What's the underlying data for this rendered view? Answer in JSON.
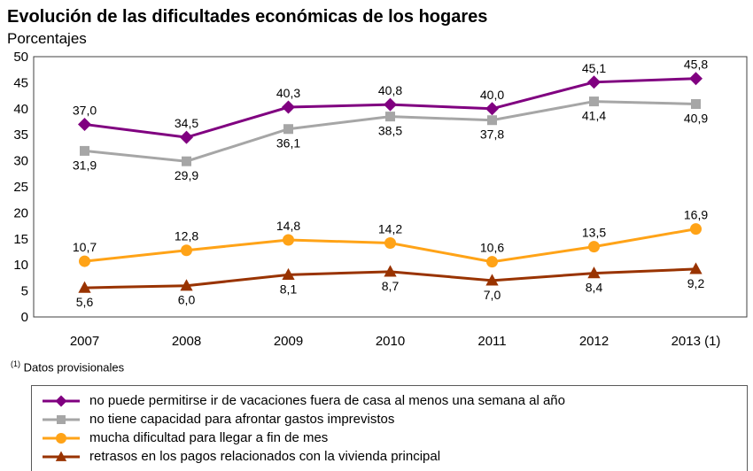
{
  "header": {
    "title": "Evolución de las dificultades económicas de los hogares",
    "subtitle": "Porcentajes"
  },
  "footnote": {
    "marker": "(1)",
    "text": "Datos provisionales"
  },
  "chart_data": {
    "type": "line",
    "title": "Evolución de las dificultades económicas de los hogares",
    "subtitle": "Porcentajes",
    "categories": [
      "2007",
      "2008",
      "2009",
      "2010",
      "2011",
      "2012",
      "2013 (1)"
    ],
    "ylim": [
      0,
      50
    ],
    "ytick_step": 5,
    "grid": false,
    "legend_position": "bottom",
    "decimal_separator": ",",
    "axis_color": "#404040",
    "series": [
      {
        "name": "no puede permitirse ir de vacaciones fuera de casa al menos una semana al año",
        "marker": "diamond",
        "color": "#800080",
        "values": [
          37.0,
          34.5,
          40.3,
          40.8,
          40.0,
          45.1,
          45.8
        ],
        "labels": [
          "37,0",
          "34,5",
          "40,3",
          "40,8",
          "40,0",
          "45,1",
          "45,8"
        ],
        "label_position": "above"
      },
      {
        "name": "no tiene capacidad para afrontar gastos imprevistos",
        "marker": "square",
        "color": "#A6A6A6",
        "values": [
          31.9,
          29.9,
          36.1,
          38.5,
          37.8,
          41.4,
          40.9
        ],
        "labels": [
          "31,9",
          "29,9",
          "36,1",
          "38,5",
          "37,8",
          "41,4",
          "40,9"
        ],
        "label_position": "below"
      },
      {
        "name": "mucha dificultad para llegar a fin de mes",
        "marker": "circle",
        "color": "#FFA317",
        "values": [
          10.7,
          12.8,
          14.8,
          14.2,
          10.6,
          13.5,
          16.9
        ],
        "labels": [
          "10,7",
          "12,8",
          "14,8",
          "14,2",
          "10,6",
          "13,5",
          "16,9"
        ],
        "label_position": "above"
      },
      {
        "name": "retrasos en los pagos relacionados con la vivienda principal",
        "marker": "triangle",
        "color": "#993300",
        "values": [
          5.6,
          6.0,
          8.1,
          8.7,
          7.0,
          8.4,
          9.2
        ],
        "labels": [
          "5,6",
          "6,0",
          "8,1",
          "8,7",
          "7,0",
          "8,4",
          "9,2"
        ],
        "label_position": "below"
      }
    ]
  }
}
